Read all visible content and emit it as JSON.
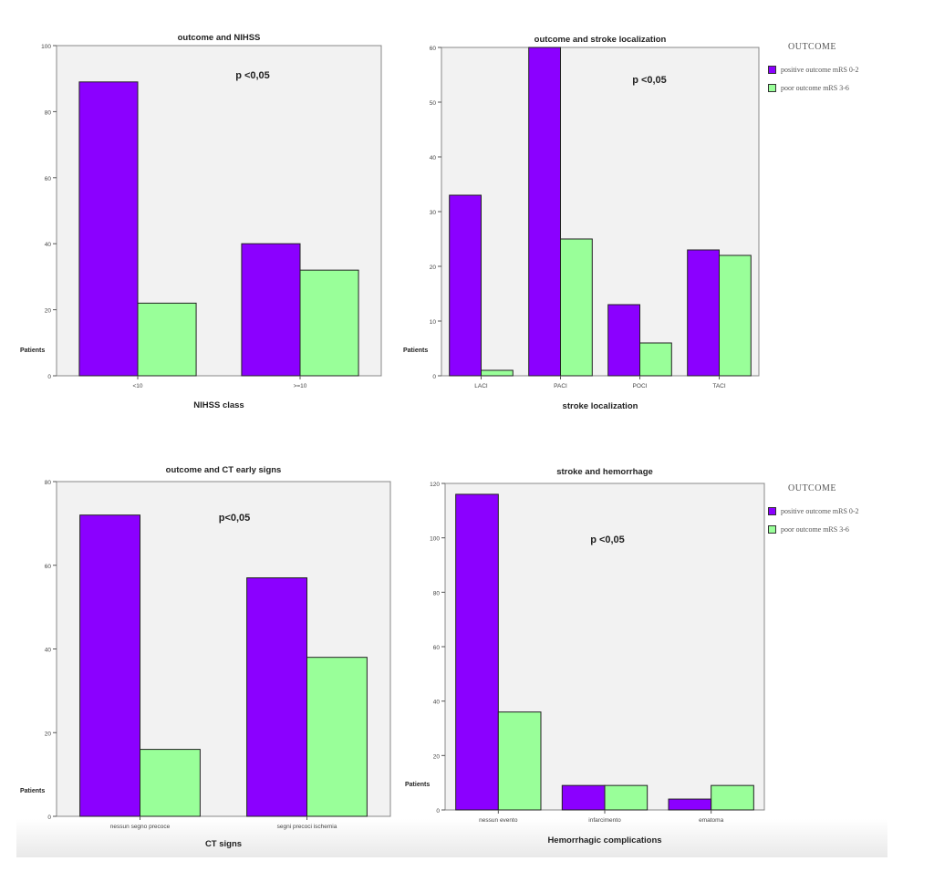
{
  "legend": {
    "title": "OUTCOME",
    "items": [
      {
        "label": "positive outcome mRS 0-2",
        "color": "#8b00ff"
      },
      {
        "label": "poor outcome mRS 3-6",
        "color": "#99ff99"
      }
    ]
  },
  "chart_data": [
    {
      "type": "bar",
      "title": "outcome and NIHSS",
      "annotation": "p <0,05",
      "xlabel": "NIHSS class",
      "ylabel": "Patients",
      "categories": [
        "<10",
        ">=10"
      ],
      "ylim": [
        0,
        100
      ],
      "yticks": [
        0,
        20,
        40,
        60,
        80,
        100
      ],
      "series": [
        {
          "name": "positive outcome mRS 0-2",
          "values": [
            89,
            40
          ]
        },
        {
          "name": "poor outcome mRS 3-6",
          "values": [
            22,
            32
          ]
        }
      ]
    },
    {
      "type": "bar",
      "title": "outcome and stroke localization",
      "annotation": "p <0,05",
      "xlabel": "stroke localization",
      "ylabel": "Patients",
      "categories": [
        "LACI",
        "PACI",
        "POCI",
        "TACI"
      ],
      "ylim": [
        0,
        60
      ],
      "yticks": [
        0,
        10,
        20,
        30,
        40,
        50,
        60
      ],
      "series": [
        {
          "name": "positive outcome mRS 0-2",
          "values": [
            33,
            60,
            13,
            23
          ]
        },
        {
          "name": "poor outcome mRS 3-6",
          "values": [
            1,
            25,
            6,
            22
          ]
        }
      ]
    },
    {
      "type": "bar",
      "title": "outcome and CT early signs",
      "annotation": "p<0,05",
      "xlabel": "CT signs",
      "ylabel": "Patients",
      "categories": [
        "nessun segno precoce",
        "segni precoci ischemia"
      ],
      "ylim": [
        0,
        80
      ],
      "yticks": [
        0,
        20,
        40,
        60,
        80
      ],
      "series": [
        {
          "name": "positive outcome mRS 0-2",
          "values": [
            72,
            57
          ]
        },
        {
          "name": "poor outcome mRS 3-6",
          "values": [
            16,
            38
          ]
        }
      ]
    },
    {
      "type": "bar",
      "title": "stroke and hemorrhage",
      "annotation": "p <0,05",
      "xlabel": "Hemorrhagic complications",
      "ylabel": "Patients",
      "categories": [
        "nessun evento",
        "infarcimento",
        "ematoma"
      ],
      "ylim": [
        0,
        120
      ],
      "yticks": [
        0,
        20,
        40,
        60,
        80,
        100,
        120
      ],
      "series": [
        {
          "name": "positive outcome mRS 0-2",
          "values": [
            116,
            9,
            4
          ]
        },
        {
          "name": "poor outcome mRS 3-6",
          "values": [
            36,
            9,
            9
          ]
        }
      ]
    }
  ]
}
